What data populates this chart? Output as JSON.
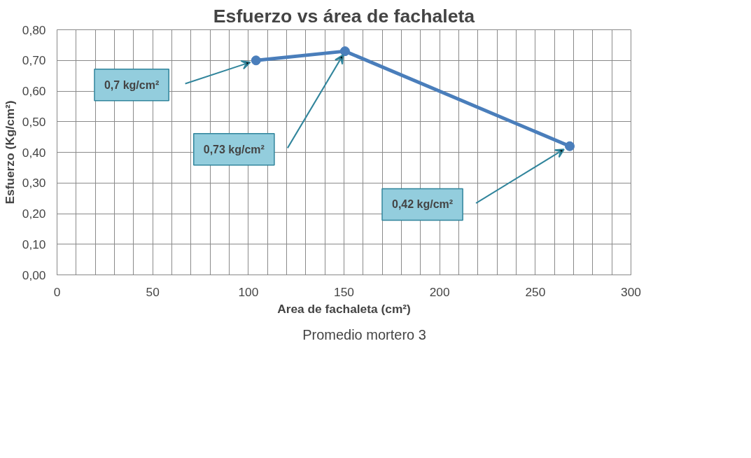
{
  "chart_data": {
    "type": "line",
    "title": "Esfuerzo vs área de fachaleta",
    "xlabel": "Area de fachaleta (cm²)",
    "ylabel": "Esfuerzo (Kg/cm²)",
    "x": [
      104,
      150.5,
      268
    ],
    "series": [
      {
        "name": "Promedio mortero 3",
        "color": "#4a7ebb",
        "values": [
          0.7,
          0.73,
          0.42
        ]
      }
    ],
    "xlim": [
      0,
      300
    ],
    "xticks": [
      0,
      {
        "value": 10,
        "label": null
      },
      {
        "value": 20,
        "label": null
      },
      {
        "value": 30,
        "label": null
      },
      {
        "value": 40,
        "label": null
      },
      50,
      {
        "value": 60,
        "label": null
      },
      {
        "value": 70,
        "label": null
      },
      {
        "value": 80,
        "label": null
      },
      {
        "value": 90,
        "label": null
      },
      100,
      {
        "value": 110,
        "label": null
      },
      {
        "value": 120,
        "label": null
      },
      {
        "value": 130,
        "label": null
      },
      {
        "value": 140,
        "label": null
      },
      150,
      {
        "value": 160,
        "label": null
      },
      {
        "value": 170,
        "label": null
      },
      {
        "value": 180,
        "label": null
      },
      {
        "value": 190,
        "label": null
      },
      200,
      {
        "value": 210,
        "label": null
      },
      {
        "value": 220,
        "label": null
      },
      {
        "value": 230,
        "label": null
      },
      {
        "value": 240,
        "label": null
      },
      250,
      {
        "value": 260,
        "label": null
      },
      {
        "value": 270,
        "label": null
      },
      {
        "value": 280,
        "label": null
      },
      {
        "value": 290,
        "label": null
      },
      300
    ],
    "ylim": [
      0,
      0.8
    ],
    "yticks": [
      {
        "value": 0,
        "label": "0,00"
      },
      {
        "value": 0.1,
        "label": "0,10"
      },
      {
        "value": 0.2,
        "label": "0,20"
      },
      {
        "value": 0.3,
        "label": "0,30"
      },
      {
        "value": 0.4,
        "label": "0,40"
      },
      {
        "value": 0.5,
        "label": "0,50"
      },
      {
        "value": 0.6,
        "label": "0,60"
      },
      {
        "value": 0.7,
        "label": "0,70"
      },
      {
        "value": 0.8,
        "label": "0,80"
      }
    ],
    "grid": true,
    "legend": "bottom",
    "marker": "circle",
    "line_style": "solid",
    "annotations": [
      "0,7 kg/cm²",
      "0,73 kg/cm²",
      "0,42 kg/cm²"
    ]
  }
}
